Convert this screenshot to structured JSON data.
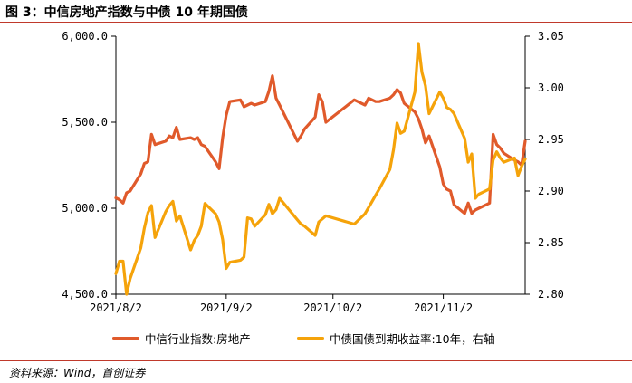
{
  "figure": {
    "title": "图 3：中信房地产指数与中债 10 年期国债",
    "source": "资料来源：Wind，首创证券"
  },
  "chart_data": {
    "type": "line",
    "x_ticks": [
      "2021/8/2",
      "2021/9/2",
      "2021/10/2",
      "2021/11/2"
    ],
    "y_left": {
      "ticks": [
        "6,000.0",
        "5,500.0",
        "5,000.0",
        "4,500.0"
      ],
      "range": [
        4500,
        6000
      ]
    },
    "y_right": {
      "ticks": [
        "3.05",
        "3.00",
        "2.95",
        "2.90",
        "2.85",
        "2.80"
      ],
      "range": [
        2.8,
        3.05
      ]
    },
    "legend_placement": "bottom",
    "grid": false,
    "series": [
      {
        "name": "中信行业指数:房地产",
        "axis": "left",
        "color": "#e05a2b",
        "points": [
          [
            "2021-08-02",
            5060
          ],
          [
            "2021-08-03",
            5050
          ],
          [
            "2021-08-04",
            5030
          ],
          [
            "2021-08-05",
            5090
          ],
          [
            "2021-08-06",
            5100
          ],
          [
            "2021-08-09",
            5200
          ],
          [
            "2021-08-10",
            5260
          ],
          [
            "2021-08-11",
            5270
          ],
          [
            "2021-08-12",
            5430
          ],
          [
            "2021-08-13",
            5370
          ],
          [
            "2021-08-16",
            5390
          ],
          [
            "2021-08-17",
            5420
          ],
          [
            "2021-08-18",
            5410
          ],
          [
            "2021-08-19",
            5470
          ],
          [
            "2021-08-20",
            5400
          ],
          [
            "2021-08-23",
            5410
          ],
          [
            "2021-08-24",
            5400
          ],
          [
            "2021-08-25",
            5410
          ],
          [
            "2021-08-26",
            5370
          ],
          [
            "2021-08-27",
            5360
          ],
          [
            "2021-08-30",
            5270
          ],
          [
            "2021-08-31",
            5230
          ],
          [
            "2021-09-01",
            5410
          ],
          [
            "2021-09-02",
            5540
          ],
          [
            "2021-09-03",
            5620
          ],
          [
            "2021-09-06",
            5630
          ],
          [
            "2021-09-07",
            5590
          ],
          [
            "2021-09-08",
            5600
          ],
          [
            "2021-09-09",
            5610
          ],
          [
            "2021-09-10",
            5600
          ],
          [
            "2021-09-13",
            5620
          ],
          [
            "2021-09-14",
            5680
          ],
          [
            "2021-09-15",
            5770
          ],
          [
            "2021-09-16",
            5640
          ],
          [
            "2021-09-17",
            5600
          ],
          [
            "2021-09-22",
            5390
          ],
          [
            "2021-09-23",
            5420
          ],
          [
            "2021-09-24",
            5460
          ],
          [
            "2021-09-27",
            5530
          ],
          [
            "2021-09-28",
            5660
          ],
          [
            "2021-09-29",
            5620
          ],
          [
            "2021-09-30",
            5500
          ],
          [
            "2021-10-08",
            5630
          ],
          [
            "2021-10-11",
            5600
          ],
          [
            "2021-10-12",
            5640
          ],
          [
            "2021-10-13",
            5630
          ],
          [
            "2021-10-14",
            5620
          ],
          [
            "2021-10-15",
            5620
          ],
          [
            "2021-10-18",
            5640
          ],
          [
            "2021-10-19",
            5660
          ],
          [
            "2021-10-20",
            5690
          ],
          [
            "2021-10-21",
            5670
          ],
          [
            "2021-10-22",
            5610
          ],
          [
            "2021-10-25",
            5560
          ],
          [
            "2021-10-26",
            5520
          ],
          [
            "2021-10-27",
            5460
          ],
          [
            "2021-10-28",
            5380
          ],
          [
            "2021-10-29",
            5420
          ],
          [
            "2021-11-01",
            5240
          ],
          [
            "2021-11-02",
            5140
          ],
          [
            "2021-11-03",
            5110
          ],
          [
            "2021-11-04",
            5100
          ],
          [
            "2021-11-05",
            5020
          ],
          [
            "2021-11-08",
            4970
          ],
          [
            "2021-11-09",
            5030
          ],
          [
            "2021-11-10",
            4970
          ],
          [
            "2021-11-11",
            4990
          ],
          [
            "2021-11-12",
            5000
          ],
          [
            "2021-11-15",
            5030
          ],
          [
            "2021-11-16",
            5430
          ],
          [
            "2021-11-17",
            5370
          ],
          [
            "2021-11-18",
            5350
          ],
          [
            "2021-11-19",
            5320
          ],
          [
            "2021-11-22",
            5280
          ],
          [
            "2021-11-23",
            5270
          ],
          [
            "2021-11-24",
            5250
          ],
          [
            "2021-11-25",
            5390
          ]
        ]
      },
      {
        "name": "中债国债到期收益率:10年，右轴",
        "axis": "right",
        "color": "#f5a30a",
        "points": [
          [
            "2021-08-02",
            2.82
          ],
          [
            "2021-08-03",
            2.832
          ],
          [
            "2021-08-04",
            2.832
          ],
          [
            "2021-08-05",
            2.8
          ],
          [
            "2021-08-06",
            2.815
          ],
          [
            "2021-08-09",
            2.845
          ],
          [
            "2021-08-10",
            2.864
          ],
          [
            "2021-08-11",
            2.879
          ],
          [
            "2021-08-12",
            2.886
          ],
          [
            "2021-08-13",
            2.855
          ],
          [
            "2021-08-16",
            2.88
          ],
          [
            "2021-08-17",
            2.886
          ],
          [
            "2021-08-18",
            2.89
          ],
          [
            "2021-08-19",
            2.871
          ],
          [
            "2021-08-20",
            2.876
          ],
          [
            "2021-08-23",
            2.843
          ],
          [
            "2021-08-24",
            2.852
          ],
          [
            "2021-08-25",
            2.857
          ],
          [
            "2021-08-26",
            2.866
          ],
          [
            "2021-08-27",
            2.888
          ],
          [
            "2021-08-30",
            2.878
          ],
          [
            "2021-08-31",
            2.87
          ],
          [
            "2021-09-01",
            2.853
          ],
          [
            "2021-09-02",
            2.825
          ],
          [
            "2021-09-03",
            2.831
          ],
          [
            "2021-09-06",
            2.833
          ],
          [
            "2021-09-07",
            2.836
          ],
          [
            "2021-09-08",
            2.874
          ],
          [
            "2021-09-09",
            2.873
          ],
          [
            "2021-09-10",
            2.866
          ],
          [
            "2021-09-13",
            2.877
          ],
          [
            "2021-09-14",
            2.887
          ],
          [
            "2021-09-15",
            2.878
          ],
          [
            "2021-09-16",
            2.882
          ],
          [
            "2021-09-17",
            2.893
          ],
          [
            "2021-09-22",
            2.872
          ],
          [
            "2021-09-23",
            2.868
          ],
          [
            "2021-09-24",
            2.866
          ],
          [
            "2021-09-27",
            2.857
          ],
          [
            "2021-09-28",
            2.87
          ],
          [
            "2021-09-29",
            2.873
          ],
          [
            "2021-09-30",
            2.876
          ],
          [
            "2021-10-08",
            2.868
          ],
          [
            "2021-10-11",
            2.878
          ],
          [
            "2021-10-12",
            2.884
          ],
          [
            "2021-10-13",
            2.89
          ],
          [
            "2021-10-14",
            2.896
          ],
          [
            "2021-10-15",
            2.902
          ],
          [
            "2021-10-18",
            2.921
          ],
          [
            "2021-10-19",
            2.94
          ],
          [
            "2021-10-20",
            2.966
          ],
          [
            "2021-10-21",
            2.956
          ],
          [
            "2021-10-22",
            2.958
          ],
          [
            "2021-10-25",
            2.996
          ],
          [
            "2021-10-26",
            3.043
          ],
          [
            "2021-10-27",
            3.015
          ],
          [
            "2021-10-28",
            3.002
          ],
          [
            "2021-10-29",
            2.975
          ],
          [
            "2021-11-01",
            2.996
          ],
          [
            "2021-11-02",
            2.99
          ],
          [
            "2021-11-03",
            2.981
          ],
          [
            "2021-11-04",
            2.979
          ],
          [
            "2021-11-05",
            2.975
          ],
          [
            "2021-11-08",
            2.951
          ],
          [
            "2021-11-09",
            2.928
          ],
          [
            "2021-11-10",
            2.936
          ],
          [
            "2021-11-11",
            2.893
          ],
          [
            "2021-11-12",
            2.897
          ],
          [
            "2021-11-15",
            2.902
          ],
          [
            "2021-11-16",
            2.93
          ],
          [
            "2021-11-17",
            2.938
          ],
          [
            "2021-11-18",
            2.932
          ],
          [
            "2021-11-19",
            2.928
          ],
          [
            "2021-11-22",
            2.932
          ],
          [
            "2021-11-23",
            2.915
          ],
          [
            "2021-11-24",
            2.924
          ],
          [
            "2021-11-25",
            2.931
          ]
        ]
      }
    ]
  }
}
